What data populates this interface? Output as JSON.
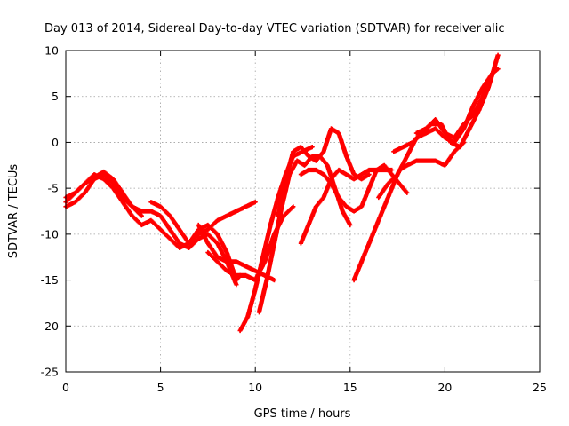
{
  "chart_data": {
    "type": "scatter",
    "title": "Day 013 of 2014, Sidereal Day-to-day VTEC variation (SDTVAR) for receiver alic",
    "xlabel": "GPS time / hours",
    "ylabel": "SDTVAR / TECUs",
    "xlim": [
      0,
      25
    ],
    "ylim": [
      -25,
      10
    ],
    "xticks": [
      "0",
      "5",
      "10",
      "15",
      "20",
      "25"
    ],
    "yticks": [
      "-25",
      "-20",
      "-15",
      "-10",
      "-5",
      "0",
      "5",
      "10"
    ],
    "grid": true,
    "marker": "plus",
    "color": "#ff0000",
    "series": [
      {
        "x": [
          0,
          0.5,
          1,
          1.5,
          2,
          2.5,
          3,
          3.5,
          4,
          4.5,
          5,
          5.5,
          6,
          6.5,
          7,
          7.5,
          8,
          8.5,
          9,
          9.2
        ],
        "y": [
          -6,
          -5.5,
          -4.5,
          -3.5,
          -4,
          -5,
          -6.5,
          -8,
          -9,
          -8.5,
          -9.5,
          -10.5,
          -11.5,
          -11,
          -9.5,
          -9,
          -10,
          -12,
          -15,
          -14.5
        ]
      },
      {
        "x": [
          0,
          0.5,
          1,
          1.5,
          2,
          2.5,
          3,
          3.5,
          4,
          4.5,
          5,
          5.5,
          6,
          6.5,
          7,
          7.5,
          8,
          8.5,
          9
        ],
        "y": [
          -7,
          -6.5,
          -5.5,
          -4,
          -3.5,
          -4.5,
          -6,
          -7,
          -7.5,
          -7.5,
          -8,
          -9.5,
          -11,
          -11.5,
          -10.5,
          -10,
          -11,
          -13,
          -15.5
        ]
      },
      {
        "x": [
          0,
          0.5,
          1,
          1.5,
          2,
          2.5,
          3,
          3.5,
          4
        ],
        "y": [
          -6.5,
          -5.5,
          -4.5,
          -3.8,
          -3.2,
          -4,
          -5.5,
          -7,
          -8
        ]
      },
      {
        "x": [
          4.5,
          5,
          5.5,
          6,
          6.5,
          7,
          7.5,
          8,
          8.5,
          9,
          9.5,
          10
        ],
        "y": [
          -6.5,
          -7,
          -8,
          -9.5,
          -11,
          -10,
          -9.5,
          -8.5,
          -8,
          -7.5,
          -7,
          -6.5
        ]
      },
      {
        "x": [
          7,
          7.5,
          8,
          8.5,
          9,
          9.5,
          10,
          10.5,
          11
        ],
        "y": [
          -9,
          -11,
          -12.5,
          -13,
          -13,
          -13.5,
          -14,
          -14.5,
          -15
        ]
      },
      {
        "x": [
          7.5,
          8,
          8.5,
          9,
          9.5,
          10,
          10.5,
          11,
          11.5,
          12
        ],
        "y": [
          -12,
          -13,
          -14,
          -14.5,
          -14.5,
          -15,
          -13,
          -10,
          -8,
          -7
        ]
      },
      {
        "x": [
          9.2,
          9.6,
          10,
          10.4,
          10.8,
          11.2,
          11.6,
          12,
          12.5,
          13
        ],
        "y": [
          -20.5,
          -19,
          -16,
          -12.5,
          -9,
          -6,
          -3.5,
          -1.5,
          -1,
          -0.5
        ]
      },
      {
        "x": [
          10.2,
          10.6,
          11,
          11.4,
          11.8,
          12.2,
          12.6,
          13,
          13.4,
          13.8,
          14.2,
          14.6,
          15
        ],
        "y": [
          -18.5,
          -15,
          -11,
          -7,
          -3.5,
          -2,
          -2.5,
          -1.5,
          -1.5,
          -2.5,
          -5,
          -7.5,
          -9
        ]
      },
      {
        "x": [
          11.2,
          11.6,
          12,
          12.4,
          12.8,
          13.2,
          13.6,
          14,
          14.4,
          14.8,
          15.2,
          15.6,
          16
        ],
        "y": [
          -8,
          -4,
          -1,
          -0.5,
          -1.5,
          -2,
          -1,
          1.5,
          1,
          -1.5,
          -3.5,
          -4,
          -3.5
        ]
      },
      {
        "x": [
          12.4,
          12.8,
          13.2,
          13.6,
          14,
          14.4,
          14.8,
          15.2,
          15.6,
          16,
          16.4,
          16.8,
          17.2
        ],
        "y": [
          -11,
          -9,
          -7,
          -6,
          -4,
          -3,
          -3.5,
          -4,
          -3.5,
          -3,
          -3,
          -3,
          -3
        ]
      },
      {
        "x": [
          12.4,
          12.8,
          13.2,
          13.6,
          14,
          14.4,
          14.8,
          15.2,
          15.6,
          16,
          16.4,
          16.8,
          17.2,
          17.6,
          18
        ],
        "y": [
          -3.5,
          -3,
          -3,
          -3.5,
          -4.5,
          -6,
          -7,
          -7.5,
          -7,
          -5,
          -3,
          -2.5,
          -3.5,
          -4.5,
          -5.5
        ]
      },
      {
        "x": [
          15.2,
          15.6,
          16,
          16.4,
          16.8,
          17.2,
          17.6,
          18,
          18.5,
          19,
          19.5,
          20,
          20.5,
          21
        ],
        "y": [
          -15,
          -13,
          -11,
          -9,
          -7,
          -5,
          -3,
          -2.5,
          -2,
          -2,
          -2,
          -2.5,
          -1,
          0
        ]
      },
      {
        "x": [
          16.5,
          17,
          17.5,
          18,
          18.5,
          19,
          19.5,
          20,
          20.5,
          21,
          21.5,
          22,
          22.5
        ],
        "y": [
          -6,
          -4.5,
          -3.5,
          -1.5,
          0.5,
          1,
          1.5,
          0.5,
          0,
          1.5,
          4,
          6,
          7.5
        ]
      },
      {
        "x": [
          17.3,
          17.8,
          18.3,
          18.8,
          19.3,
          19.8,
          20.3,
          20.8,
          21.3,
          21.8,
          22.3,
          22.8
        ],
        "y": [
          -1,
          -0.5,
          0,
          1,
          2,
          2,
          0,
          -0.5,
          1.5,
          3.5,
          6,
          9.5
        ]
      },
      {
        "x": [
          18.5,
          19,
          19.5,
          20,
          20.5,
          21,
          21.5,
          22,
          22.5,
          22.8
        ],
        "y": [
          1,
          1.5,
          2.5,
          1,
          0.5,
          2,
          3,
          5,
          7.5,
          8
        ]
      }
    ]
  }
}
